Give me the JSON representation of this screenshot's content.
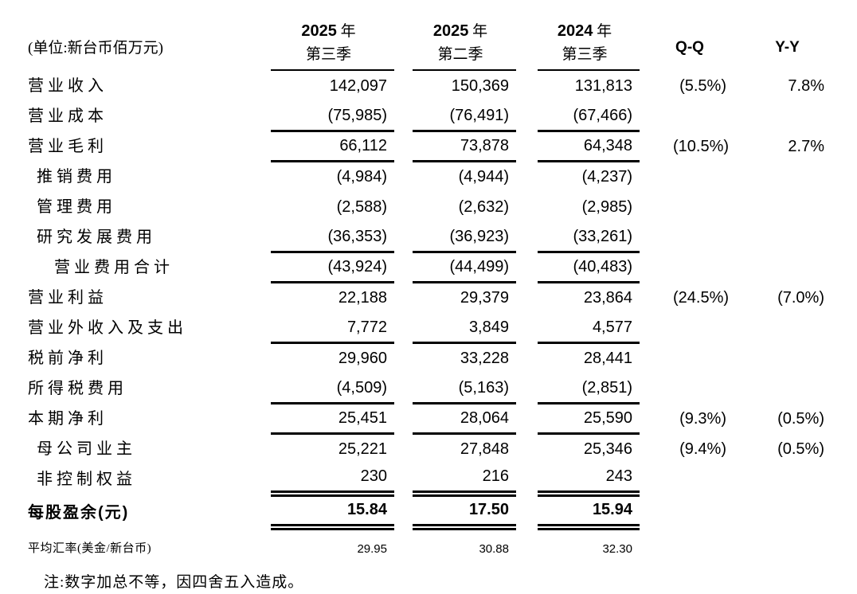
{
  "unit_label": "(单位:新台币佰万元)",
  "header": {
    "col1": {
      "year": "2025",
      "year_suffix": "年",
      "quarter": "第三季"
    },
    "col2": {
      "year": "2025",
      "year_suffix": "年",
      "quarter": "第二季"
    },
    "col3": {
      "year": "2024",
      "year_suffix": "年",
      "quarter": "第三季"
    },
    "qq": "Q-Q",
    "yy": "Y-Y"
  },
  "table": {
    "rows": [
      {
        "label": "营业收入",
        "indent": 0,
        "v1": "142,097",
        "v2": "150,369",
        "v3": "131,813",
        "qq": "(5.5%)",
        "yy": "7.8%",
        "rule": "none"
      },
      {
        "label": "营业成本",
        "indent": 0,
        "v1": "(75,985)",
        "v2": "(76,491)",
        "v3": "(67,466)",
        "qq": "",
        "yy": "",
        "rule": "single"
      },
      {
        "label": "营业毛利",
        "indent": 0,
        "v1": "66,112",
        "v2": "73,878",
        "v3": "64,348",
        "qq": "(10.5%)",
        "yy": "2.7%",
        "rule": "single"
      },
      {
        "label": "推销费用",
        "indent": 1,
        "v1": "(4,984)",
        "v2": "(4,944)",
        "v3": "(4,237)",
        "qq": "",
        "yy": "",
        "rule": "none"
      },
      {
        "label": "管理费用",
        "indent": 1,
        "v1": "(2,588)",
        "v2": "(2,632)",
        "v3": "(2,985)",
        "qq": "",
        "yy": "",
        "rule": "none"
      },
      {
        "label": "研究发展费用",
        "indent": 1,
        "v1": "(36,353)",
        "v2": "(36,923)",
        "v3": "(33,261)",
        "qq": "",
        "yy": "",
        "rule": "single"
      },
      {
        "label": "营业费用合计",
        "indent": 2,
        "v1": "(43,924)",
        "v2": "(44,499)",
        "v3": "(40,483)",
        "qq": "",
        "yy": "",
        "rule": "single"
      },
      {
        "label": "营业利益",
        "indent": 0,
        "v1": "22,188",
        "v2": "29,379",
        "v3": "23,864",
        "qq": "(24.5%)",
        "yy": "(7.0%)",
        "rule": "none"
      },
      {
        "label": "营业外收入及支出",
        "indent": 0,
        "v1": "7,772",
        "v2": "3,849",
        "v3": "4,577",
        "qq": "",
        "yy": "",
        "rule": "single"
      },
      {
        "label": "税前净利",
        "indent": 0,
        "v1": "29,960",
        "v2": "33,228",
        "v3": "28,441",
        "qq": "",
        "yy": "",
        "rule": "none"
      },
      {
        "label": "所得税费用",
        "indent": 0,
        "v1": "(4,509)",
        "v2": "(5,163)",
        "v3": "(2,851)",
        "qq": "",
        "yy": "",
        "rule": "single"
      },
      {
        "label": "本期净利",
        "indent": 0,
        "v1": "25,451",
        "v2": "28,064",
        "v3": "25,590",
        "qq": "(9.3%)",
        "yy": "(0.5%)",
        "rule": "single"
      },
      {
        "label": "母公司业主",
        "indent": 1,
        "v1": "25,221",
        "v2": "27,848",
        "v3": "25,346",
        "qq": "(9.4%)",
        "yy": "(0.5%)",
        "rule": "none"
      },
      {
        "label": "非控制权益",
        "indent": 1,
        "v1": "230",
        "v2": "216",
        "v3": "243",
        "qq": "",
        "yy": "",
        "rule": "double"
      },
      {
        "label": "每股盈余(元)",
        "indent": 0,
        "v1": "15.84",
        "v2": "17.50",
        "v3": "15.94",
        "qq": "",
        "yy": "",
        "rule": "double",
        "bold": true
      },
      {
        "label": "平均汇率(美金/新台币)",
        "indent": 0,
        "v1": "29.95",
        "v2": "30.88",
        "v3": "32.30",
        "qq": "",
        "yy": "",
        "rule": "none",
        "small": true
      }
    ]
  },
  "note": "注:数字加总不等，因四舍五入造成。",
  "colors": {
    "text": "#000000",
    "background": "#ffffff",
    "rule": "#000000"
  }
}
